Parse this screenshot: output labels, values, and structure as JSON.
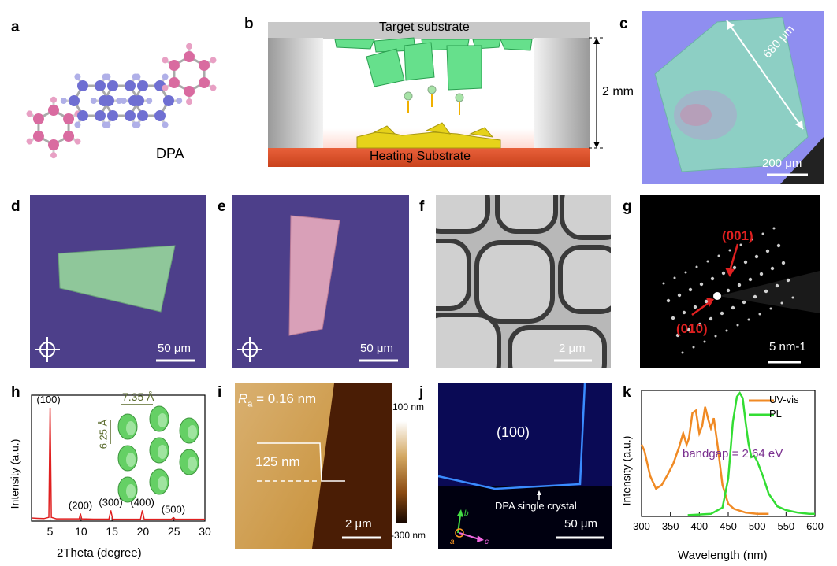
{
  "panel_labels": {
    "a": "a",
    "b": "b",
    "c": "c",
    "d": "d",
    "e": "e",
    "f": "f",
    "g": "g",
    "h": "h",
    "i": "i",
    "j": "j",
    "k": "k"
  },
  "a": {
    "molecule_name": "DPA"
  },
  "b": {
    "top_label": "Target substrate",
    "bottom_label": "Heating Substrate",
    "gap": "2 mm"
  },
  "c": {
    "length": "680 μm",
    "scale": "200 μm"
  },
  "d": {
    "scale": "50 μm"
  },
  "e": {
    "scale": "50 μm"
  },
  "f": {
    "scale": "2 μm"
  },
  "g": {
    "spot1": "(001)",
    "spot2": "(010)",
    "scale": "5 nm-1"
  },
  "h": {
    "a_param": "7.35 Å",
    "b_param": "6.25 Å"
  },
  "i": {
    "ra_symbol": "R",
    "ra_sub": "a",
    "ra_value": " = 0.16 nm",
    "step": "125 nm",
    "scale": "2 μm",
    "cbar_max": "100 nm",
    "cbar_min": "-300 nm"
  },
  "j": {
    "facet": "(100)",
    "crystal": "DPA single crystal",
    "scale": "50 μm",
    "axis_b": "b",
    "axis_a": "a",
    "axis_c": "c"
  },
  "colors": {
    "red": "#e02020",
    "orange": "#f08a24",
    "green": "#33dd33",
    "purple": "#7a2f8f",
    "olive": "#5a6b2c"
  },
  "chart_data": [
    {
      "type": "line",
      "xlabel": "2Theta (degree)",
      "ylabel": "Intensity (a.u.)",
      "xlim": [
        2,
        30
      ],
      "xticks": [
        "5",
        "10",
        "15",
        "20",
        "25",
        "30"
      ],
      "series": [
        {
          "x": [
            2,
            3,
            4,
            4.8,
            5.0,
            5.2,
            6,
            9.7,
            9.9,
            10.1,
            12,
            14.5,
            14.8,
            15.1,
            17,
            19.6,
            19.9,
            20.2,
            22,
            24.6,
            24.9,
            25.2,
            27,
            30
          ],
          "values": [
            2.5,
            2.2,
            2.0,
            3,
            90,
            3,
            1.8,
            1.8,
            6,
            1.8,
            1.6,
            1.6,
            8.5,
            1.6,
            1.5,
            1.5,
            8.5,
            1.5,
            1.5,
            1.5,
            2.8,
            1.5,
            1.5,
            1.5
          ]
        }
      ],
      "peak_labels": [
        {
          "x": 5.0,
          "label": "(100)"
        },
        {
          "x": 9.9,
          "label": "(200)"
        },
        {
          "x": 14.8,
          "label": "(300)"
        },
        {
          "x": 19.9,
          "label": "(400)"
        },
        {
          "x": 24.9,
          "label": "(500)"
        }
      ]
    },
    {
      "type": "line",
      "xlabel": "Wavelength (nm)",
      "ylabel": "Intensity (a.u.)",
      "xlim": [
        300,
        600
      ],
      "ylim": [
        0,
        1
      ],
      "xticks": [
        "300",
        "350",
        "400",
        "450",
        "500",
        "550",
        "600"
      ],
      "legend": "top-right",
      "annotation": "bandgap = 2.64 eV",
      "series": [
        {
          "name": "UV-vis",
          "x": [
            300,
            305,
            315,
            325,
            335,
            345,
            355,
            365,
            372,
            378,
            382,
            388,
            394,
            400,
            405,
            410,
            416,
            420,
            425,
            432,
            440,
            450,
            460,
            480,
            500,
            520
          ],
          "values": [
            0.57,
            0.52,
            0.32,
            0.22,
            0.25,
            0.33,
            0.42,
            0.55,
            0.66,
            0.57,
            0.62,
            0.82,
            0.84,
            0.66,
            0.72,
            0.87,
            0.76,
            0.7,
            0.78,
            0.55,
            0.25,
            0.1,
            0.06,
            0.03,
            0.02,
            0.02
          ]
        },
        {
          "name": "PL",
          "x": [
            380,
            420,
            440,
            450,
            458,
            465,
            470,
            475,
            480,
            485,
            490,
            495,
            500,
            510,
            520,
            535,
            550,
            570,
            590,
            600
          ],
          "values": [
            0.01,
            0.02,
            0.07,
            0.3,
            0.75,
            0.95,
            0.98,
            0.94,
            0.75,
            0.58,
            0.47,
            0.48,
            0.44,
            0.32,
            0.18,
            0.08,
            0.05,
            0.03,
            0.02,
            0.02
          ]
        }
      ]
    }
  ]
}
